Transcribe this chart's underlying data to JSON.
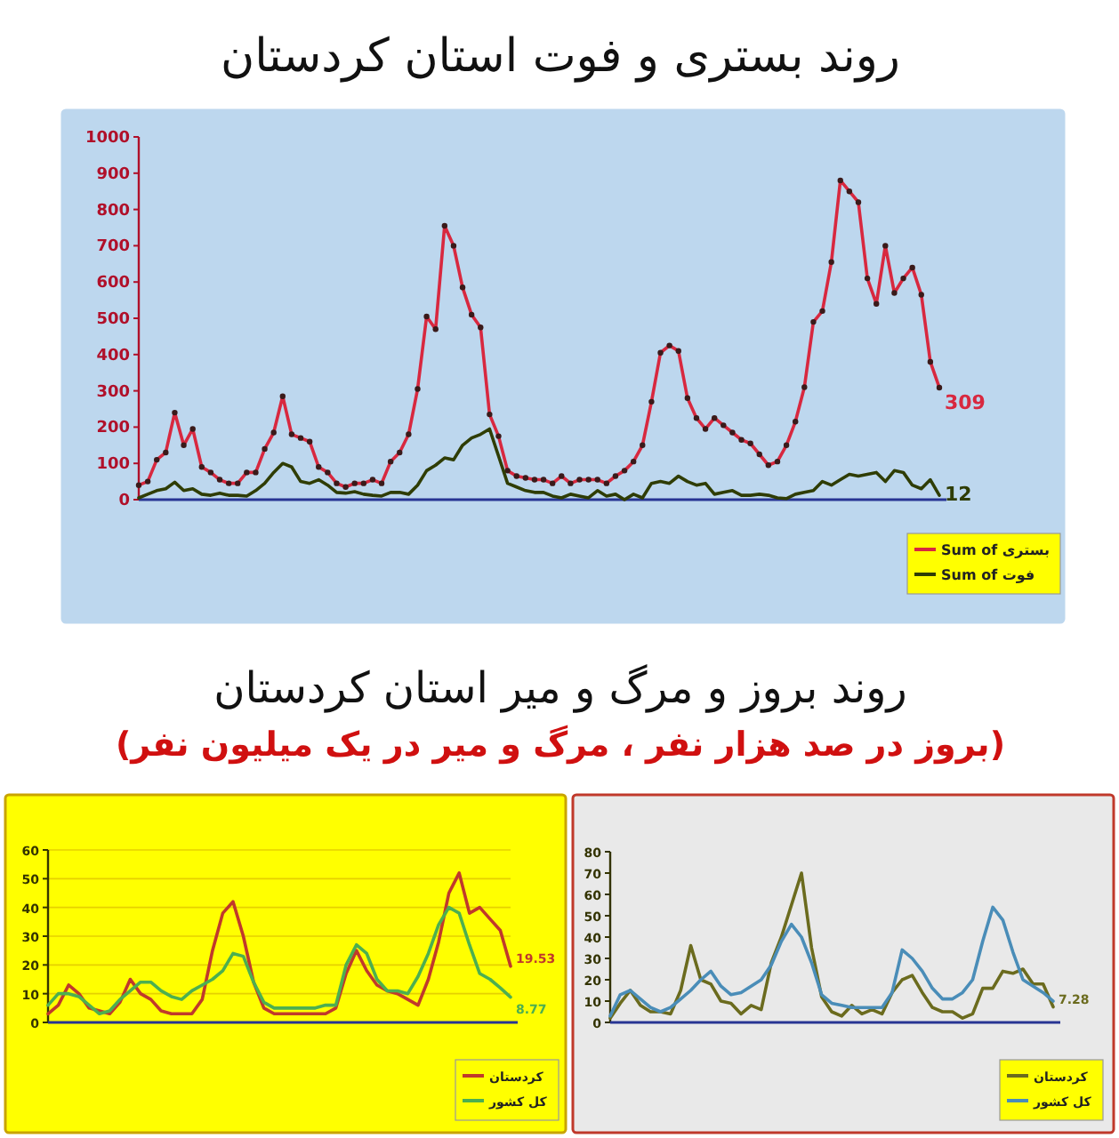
{
  "chart_data": [
    {
      "type": "line",
      "title": "روند بستری و فوت استان کردستان",
      "categories": [
        null,
        null,
        null,
        null,
        null,
        null,
        null,
        null,
        null,
        null,
        null,
        null,
        null,
        null,
        null,
        null,
        null,
        null,
        null,
        null,
        null,
        null,
        null,
        null,
        null,
        null,
        null,
        null,
        null,
        null,
        null,
        null,
        null,
        null,
        null,
        null,
        null,
        null,
        null,
        null,
        null,
        null,
        null,
        null,
        null,
        null,
        null,
        null,
        null,
        null,
        null,
        null,
        null,
        null,
        null,
        null,
        null,
        null,
        null,
        null,
        null,
        null,
        null,
        null,
        null,
        null,
        null,
        null,
        null,
        null,
        null,
        null,
        null,
        null,
        null,
        null,
        null,
        null,
        null,
        null,
        null,
        null,
        null,
        null,
        null,
        null,
        null,
        null,
        null,
        null
      ],
      "ylim": [
        0,
        1000
      ],
      "yticks": [
        0,
        100,
        200,
        300,
        400,
        500,
        600,
        700,
        800,
        900,
        1000
      ],
      "legend": "bottom right",
      "series": [
        {
          "name": "Sum of بستری",
          "color": "#d8283f",
          "marker": "circle",
          "values": [
            40,
            50,
            110,
            130,
            240,
            150,
            195,
            90,
            75,
            55,
            45,
            45,
            75,
            75,
            140,
            185,
            285,
            180,
            170,
            160,
            90,
            75,
            45,
            35,
            45,
            45,
            55,
            45,
            105,
            130,
            180,
            305,
            505,
            470,
            755,
            700,
            585,
            510,
            475,
            235,
            175,
            80,
            65,
            60,
            55,
            55,
            45,
            65,
            45,
            55,
            55,
            55,
            45,
            65,
            80,
            105,
            150,
            270,
            405,
            425,
            410,
            280,
            225,
            195,
            225,
            205,
            185,
            165,
            155,
            125,
            95,
            105,
            150,
            215,
            310,
            490,
            520,
            655,
            880,
            850,
            820,
            610,
            540,
            700,
            570,
            610,
            640,
            565,
            380,
            309
          ],
          "value_labels": [
            null,
            null,
            null,
            null,
            null,
            null,
            null,
            null,
            null,
            null,
            null,
            null,
            null,
            null,
            null,
            null,
            null,
            null,
            null,
            null,
            null,
            null,
            null,
            null,
            null,
            null,
            null,
            null,
            null,
            null,
            null,
            null,
            null,
            null,
            null,
            null,
            null,
            null,
            null,
            null,
            null,
            null,
            null,
            null,
            null,
            null,
            null,
            null,
            null,
            null,
            null,
            null,
            null,
            null,
            null,
            null,
            null,
            null,
            null,
            null,
            null,
            null,
            null,
            null,
            null,
            null,
            null,
            null,
            null,
            null,
            null,
            null,
            null,
            null,
            null,
            null,
            null,
            null,
            null,
            null,
            null,
            null,
            null,
            null,
            null,
            null,
            null,
            null,
            null,
            "309"
          ]
        },
        {
          "name": "Sum of فوت",
          "color": "#2f3d05",
          "values": [
            5,
            15,
            25,
            30,
            48,
            25,
            30,
            15,
            12,
            18,
            12,
            12,
            10,
            25,
            45,
            75,
            100,
            90,
            50,
            45,
            55,
            40,
            20,
            18,
            22,
            15,
            12,
            10,
            20,
            20,
            15,
            40,
            80,
            95,
            115,
            110,
            150,
            170,
            180,
            195,
            120,
            45,
            35,
            25,
            20,
            20,
            10,
            5,
            15,
            10,
            5,
            25,
            10,
            15,
            0,
            15,
            5,
            45,
            50,
            45,
            65,
            50,
            40,
            45,
            15,
            20,
            25,
            12,
            12,
            15,
            12,
            5,
            3,
            15,
            20,
            25,
            50,
            40,
            55,
            70,
            65,
            70,
            75,
            50,
            80,
            75,
            40,
            30,
            55,
            12
          ],
          "value_labels": [
            null,
            null,
            null,
            null,
            null,
            null,
            null,
            null,
            null,
            null,
            null,
            null,
            null,
            null,
            null,
            null,
            null,
            null,
            null,
            null,
            null,
            null,
            null,
            null,
            null,
            null,
            null,
            null,
            null,
            null,
            null,
            null,
            null,
            null,
            null,
            null,
            null,
            null,
            null,
            null,
            null,
            null,
            null,
            null,
            null,
            null,
            null,
            null,
            null,
            null,
            null,
            null,
            null,
            null,
            null,
            null,
            null,
            null,
            null,
            null,
            null,
            null,
            null,
            null,
            null,
            null,
            null,
            null,
            null,
            null,
            null,
            null,
            null,
            null,
            null,
            null,
            null,
            null,
            null,
            null,
            null,
            null,
            null,
            null,
            null,
            null,
            null,
            null,
            null,
            "12"
          ]
        }
      ]
    },
    {
      "type": "line",
      "title": "روند بروز و مرگ و میر استان کردستان",
      "subtitle": "(بروز در صد هزار نفر ، مرگ و میر در یک میلیون نفر)",
      "categories": [
        null,
        null,
        null,
        null,
        null,
        null,
        null,
        null,
        null,
        null,
        null,
        null,
        null,
        null,
        null,
        null,
        null,
        null,
        null,
        null,
        null,
        null,
        null,
        null,
        null,
        null,
        null,
        null,
        null,
        null,
        null,
        null,
        null,
        null,
        null,
        null,
        null,
        null,
        null,
        null,
        null,
        null,
        null,
        null,
        null,
        null
      ],
      "ylim": [
        0,
        60
      ],
      "yticks": [
        0,
        10,
        20,
        30,
        40,
        50,
        60
      ],
      "grid": "y",
      "legend": "bottom right",
      "series": [
        {
          "name": "کردستان",
          "color": "#c0392b",
          "values": [
            3,
            6,
            13,
            10,
            5,
            4,
            3,
            7,
            15,
            10,
            8,
            4,
            3,
            3,
            3,
            8,
            25,
            38,
            42,
            30,
            14,
            5,
            3,
            3,
            3,
            3,
            3,
            3,
            5,
            17,
            25,
            18,
            13,
            11,
            10,
            8,
            6,
            15,
            28,
            45,
            52,
            38,
            40,
            36,
            32,
            19.53
          ],
          "value_labels": [
            null,
            null,
            null,
            null,
            null,
            null,
            null,
            null,
            null,
            null,
            null,
            null,
            null,
            null,
            null,
            null,
            null,
            null,
            null,
            null,
            null,
            null,
            null,
            null,
            null,
            null,
            null,
            null,
            null,
            null,
            null,
            null,
            null,
            null,
            null,
            null,
            null,
            null,
            null,
            null,
            null,
            null,
            null,
            null,
            null,
            "19.53"
          ]
        },
        {
          "name": "کل کشور",
          "color": "#4caf50",
          "values": [
            6,
            10,
            10,
            9,
            6,
            3,
            4,
            8,
            11,
            14,
            14,
            11,
            9,
            8,
            11,
            13,
            15,
            18,
            24,
            23,
            14,
            7,
            5,
            5,
            5,
            5,
            5,
            6,
            6,
            20,
            27,
            24,
            15,
            11,
            11,
            10,
            16,
            24,
            34,
            40,
            38,
            27,
            17,
            15,
            12,
            8.77
          ],
          "value_labels": [
            null,
            null,
            null,
            null,
            null,
            null,
            null,
            null,
            null,
            null,
            null,
            null,
            null,
            null,
            null,
            null,
            null,
            null,
            null,
            null,
            null,
            null,
            null,
            null,
            null,
            null,
            null,
            null,
            null,
            null,
            null,
            null,
            null,
            null,
            null,
            null,
            null,
            null,
            null,
            null,
            null,
            null,
            null,
            null,
            null,
            "8.77"
          ]
        }
      ]
    },
    {
      "type": "line",
      "categories": [
        null,
        null,
        null,
        null,
        null,
        null,
        null,
        null,
        null,
        null,
        null,
        null,
        null,
        null,
        null,
        null,
        null,
        null,
        null,
        null,
        null,
        null,
        null,
        null,
        null,
        null,
        null,
        null,
        null,
        null,
        null,
        null,
        null,
        null,
        null,
        null,
        null,
        null,
        null,
        null,
        null,
        null,
        null,
        null,
        null
      ],
      "ylim": [
        0,
        80
      ],
      "yticks": [
        0,
        10,
        20,
        30,
        40,
        50,
        60,
        70,
        80
      ],
      "legend": "bottom right",
      "series": [
        {
          "name": "کردستان",
          "color": "#6b6b1e",
          "values": [
            2,
            9,
            15,
            8,
            5,
            5,
            4,
            15,
            36,
            20,
            18,
            10,
            9,
            4,
            8,
            6,
            28,
            40,
            55,
            70,
            35,
            12,
            5,
            3,
            8,
            4,
            6,
            4,
            14,
            20,
            22,
            14,
            7,
            5,
            5,
            2,
            4,
            16,
            16,
            24,
            23,
            25,
            18,
            18,
            7.28
          ],
          "value_labels": [
            null,
            null,
            null,
            null,
            null,
            null,
            null,
            null,
            null,
            null,
            null,
            null,
            null,
            null,
            null,
            null,
            null,
            null,
            null,
            null,
            null,
            null,
            null,
            null,
            null,
            null,
            null,
            null,
            null,
            null,
            null,
            null,
            null,
            null,
            null,
            null,
            null,
            null,
            null,
            null,
            null,
            null,
            null,
            null,
            "7.28"
          ]
        },
        {
          "name": "کل کشور",
          "color": "#4a8db8",
          "values": [
            3,
            13,
            15,
            11,
            7,
            5,
            7,
            11,
            15,
            20,
            24,
            17,
            13,
            14,
            17,
            20,
            27,
            38,
            46,
            40,
            28,
            13,
            9,
            8,
            7,
            7,
            7,
            7,
            14,
            34,
            30,
            24,
            16,
            11,
            11,
            14,
            20,
            38,
            54,
            48,
            33,
            20,
            17,
            14,
            10
          ]
        }
      ]
    }
  ]
}
